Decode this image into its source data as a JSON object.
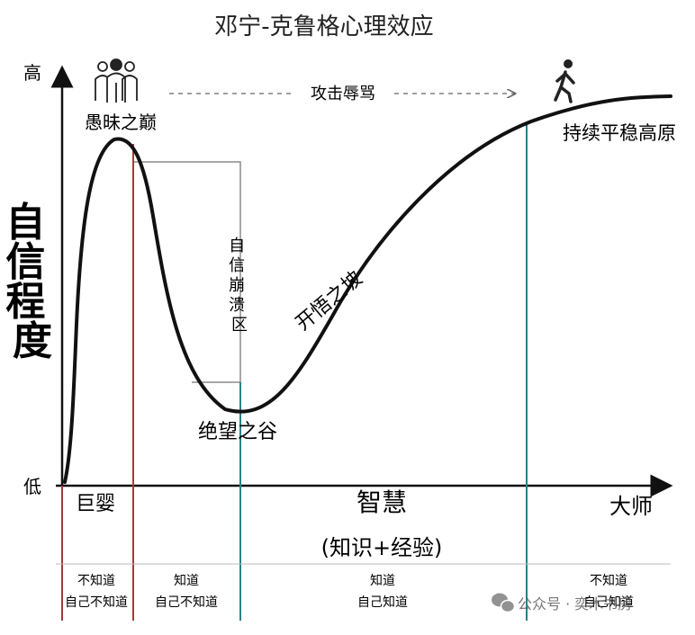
{
  "title": "邓宁-克鲁格心理效应",
  "axes": {
    "y_label": "自信程度",
    "y_high": "高",
    "y_low": "低",
    "x_label": "智慧",
    "x_sublabel": "(知识+经验)",
    "x_start": "巨婴",
    "x_end": "大师"
  },
  "curve_labels": {
    "peak": "愚昧之巅",
    "collapse_zone": "自信崩溃区",
    "valley": "绝望之谷",
    "slope": "开悟之坡",
    "plateau": "持续平稳高原"
  },
  "annotation": {
    "arrow_text": "攻击辱骂"
  },
  "stages": [
    {
      "line1": "不知道",
      "line2": "自己不知道"
    },
    {
      "line1": "知道",
      "line2": "自己不知道"
    },
    {
      "line1": "知道",
      "line2": "自己知道"
    },
    {
      "line1": "不知道",
      "line2": "自己知道"
    }
  ],
  "watermark": "公众号 · 奕木书房",
  "icons": [
    "group-of-people-icon",
    "walking-person-icon",
    "wechat-icon"
  ],
  "colors": {
    "curve": "#111111",
    "red_line": "#a33a3a",
    "teal_line": "#2d7f8a",
    "guide": "#8a8a8a"
  }
}
